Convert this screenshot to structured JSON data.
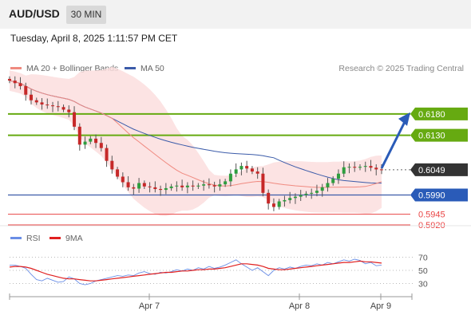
{
  "header": {
    "pair": "AUD/USD",
    "timeframe": "30 MIN"
  },
  "datetime": "Tuesday, April 8, 2025 1:11:57 PM CET",
  "legend": {
    "ma20": {
      "label": "MA 20 + Bollinger Bands",
      "color": "#f08a80"
    },
    "ma50": {
      "label": "MA 50",
      "color": "#3b5ba9"
    },
    "rsi": {
      "label": "RSI",
      "color": "#6a8ee6"
    },
    "ma9": {
      "label": "9MA",
      "color": "#e02020"
    }
  },
  "credit": "Research © 2025 Trading Central",
  "chart_data": [
    {
      "type": "candlestick",
      "title": "",
      "x_labels": [
        "Apr 7",
        "Apr 8",
        "Apr 9"
      ],
      "ylim": [
        0.5905,
        0.626
      ],
      "closes": [
        0.6258,
        0.6252,
        0.6245,
        0.6225,
        0.6212,
        0.6207,
        0.6202,
        0.62,
        0.6198,
        0.6196,
        0.619,
        0.6184,
        0.615,
        0.6108,
        0.6115,
        0.6122,
        0.6112,
        0.61,
        0.607,
        0.605,
        0.6033,
        0.602,
        0.6008,
        0.6005,
        0.6018,
        0.601,
        0.6008,
        0.6004,
        0.6002,
        0.6006,
        0.601,
        0.6012,
        0.6008,
        0.6012,
        0.601,
        0.6012,
        0.6015,
        0.6013,
        0.601,
        0.6015,
        0.6022,
        0.604,
        0.605,
        0.6058,
        0.6052,
        0.6045,
        0.604,
        0.5995,
        0.597,
        0.5962,
        0.5975,
        0.5978,
        0.5983,
        0.5986,
        0.599,
        0.5993,
        0.5995,
        0.6,
        0.6008,
        0.6018,
        0.6028,
        0.604,
        0.6055,
        0.6056,
        0.6054,
        0.6056,
        0.6058,
        0.6054,
        0.605,
        0.6049
      ],
      "current_price": "0.6049",
      "resistance_levels": [
        {
          "label": "0.6180",
          "value": 0.618,
          "color": "#66aa11"
        },
        {
          "label": "0.6130",
          "value": 0.613,
          "color": "#66aa11"
        }
      ],
      "pivot": {
        "label": "0.5990",
        "value": 0.599,
        "color": "#3b5ba9"
      },
      "support_levels": [
        {
          "label": "0.5945",
          "value": 0.5945,
          "color": "#e94545"
        },
        {
          "label": "0.5920",
          "value": 0.592,
          "color": "#e94545"
        }
      ],
      "forecast": "up"
    },
    {
      "type": "line",
      "title": "RSI",
      "ylim": [
        10,
        90
      ],
      "ticks": [
        "70",
        "50",
        "30"
      ],
      "series": [
        {
          "name": "RSI",
          "values": [
            58,
            58,
            56,
            53,
            44,
            36,
            34,
            38,
            35,
            32,
            33,
            40,
            37,
            30,
            28,
            30,
            34,
            36,
            38,
            40,
            42,
            41,
            43,
            42,
            46,
            48,
            45,
            44,
            47,
            46,
            48,
            51,
            49,
            52,
            50,
            54,
            52,
            56,
            53,
            55,
            58,
            62,
            66,
            60,
            55,
            50,
            54,
            48,
            42,
            50,
            54,
            52,
            55,
            53,
            56,
            58,
            57,
            60,
            58,
            62,
            60,
            63,
            66,
            64,
            67,
            65,
            60,
            62,
            57,
            58
          ]
        },
        {
          "name": "9MA",
          "values": [
            55,
            56,
            56,
            55,
            53,
            50,
            47,
            44,
            42,
            40,
            38,
            37,
            37,
            36,
            35,
            34,
            34,
            35,
            36,
            37,
            38,
            39,
            40,
            41,
            42,
            43,
            44,
            45,
            46,
            47,
            47,
            48,
            49,
            49,
            50,
            51,
            51,
            52,
            52,
            53,
            54,
            56,
            58,
            60,
            60,
            59,
            58,
            56,
            53,
            52,
            51,
            51,
            52,
            53,
            54,
            55,
            56,
            57,
            58,
            59,
            60,
            61,
            62,
            62,
            63,
            64,
            63,
            63,
            62,
            61
          ]
        }
      ]
    }
  ]
}
